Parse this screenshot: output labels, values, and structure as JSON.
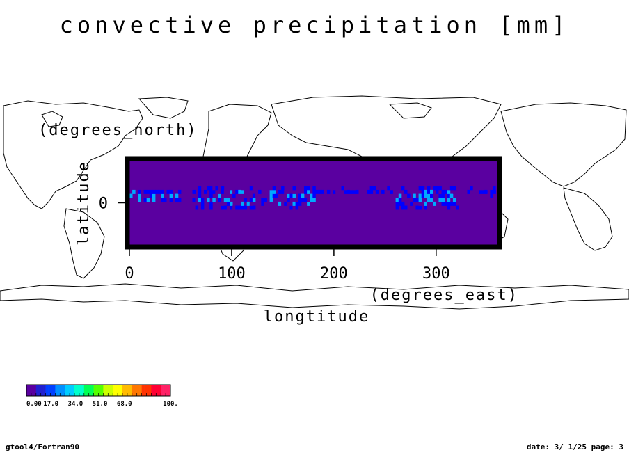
{
  "chart_data": {
    "type": "heatmap",
    "title": "convective precipitation [mm]",
    "xlabel": "longtitude",
    "xunit": "(degrees_east)",
    "ylabel": "latitude",
    "yunit": "(degrees_north)",
    "xlim": [
      0,
      360
    ],
    "ylim": [
      -30,
      30
    ],
    "xticks": [
      0,
      100,
      200,
      300
    ],
    "yticks": [
      0
    ],
    "colorbar": {
      "min": 0,
      "max": 100,
      "ticks": [
        "0.00",
        "17.0",
        "34.0",
        "51.0",
        "68.0",
        "100."
      ],
      "colors": [
        "#5a00a0",
        "#0000ff",
        "#00aaff",
        "#00ffaa",
        "#00ff00",
        "#aaff00",
        "#ffff00",
        "#ffaa00",
        "#ff3300",
        "#ff0066"
      ]
    },
    "background_value": 0,
    "rain_bands": [
      {
        "lon_start": 0,
        "lon_end": 50,
        "lat_center": 4,
        "width": 10,
        "intensity": 24
      },
      {
        "lon_start": 60,
        "lon_end": 180,
        "lat_center": 2,
        "width": 18,
        "intensity": 20
      },
      {
        "lon_start": 180,
        "lon_end": 260,
        "lat_center": 7,
        "width": 6,
        "intensity": 12
      },
      {
        "lon_start": 260,
        "lon_end": 320,
        "lat_center": 2,
        "width": 16,
        "intensity": 22
      },
      {
        "lon_start": 320,
        "lon_end": 360,
        "lat_center": 6,
        "width": 8,
        "intensity": 14
      }
    ]
  },
  "footer": {
    "left": "gtool4/Fortran90",
    "right": "date: 3/ 1/25 page: 3"
  },
  "colors": {
    "frame": "#000000",
    "map_lines": "#000000",
    "background": "#ffffff"
  }
}
